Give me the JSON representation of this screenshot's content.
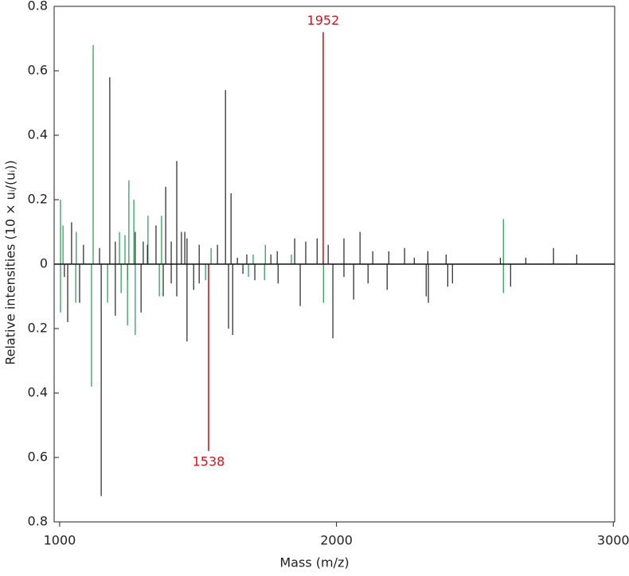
{
  "chart_data": {
    "type": "stick",
    "xlabel": "Mass (m/z)",
    "ylabel": "Relative intensities (10 × uᵢ/(uᵢ))",
    "xlim": [
      980,
      3005
    ],
    "ylim": [
      -0.8,
      0.8
    ],
    "xticks": [
      1000,
      2000,
      3000
    ],
    "yticks": [
      0.8,
      0.6,
      0.4,
      0.2,
      0,
      {
        "value": -0.2,
        "label": "0.2"
      },
      {
        "value": -0.4,
        "label": "0.4"
      },
      {
        "value": -0.6,
        "label": "0.6"
      },
      {
        "value": -0.8,
        "label": "0.8"
      }
    ],
    "series": [
      {
        "color": "#1e9a50",
        "x": [
          1003,
          1012,
          1060,
          1121,
          1216,
          1236,
          1250,
          1268,
          1319,
          1368,
          1547,
          1699,
          1743,
          1837,
          2603
        ],
        "values": [
          0.2,
          0.12,
          0.1,
          0.68,
          0.1,
          0.09,
          0.26,
          0.2,
          0.15,
          0.15,
          0.05,
          0.03,
          0.06,
          0.03,
          0.14
        ]
      },
      {
        "color": "#222222",
        "x": [
          1043,
          1086,
          1144,
          1181,
          1201,
          1273,
          1302,
          1317,
          1348,
          1383,
          1403,
          1423,
          1440,
          1452,
          1460,
          1504,
          1570,
          1599,
          1619,
          1642,
          1676,
          1763,
          1786,
          1849,
          1889,
          1930,
          1970,
          2027,
          2085,
          2131,
          2189,
          2246,
          2281,
          2330,
          2396,
          2592,
          2684,
          2784,
          2868
        ],
        "values": [
          0.13,
          0.06,
          0.05,
          0.58,
          0.07,
          0.1,
          0.07,
          0.06,
          0.12,
          0.24,
          0.07,
          0.32,
          0.1,
          0.1,
          0.08,
          0.06,
          0.06,
          0.54,
          0.22,
          0.02,
          0.03,
          0.03,
          0.04,
          0.08,
          0.07,
          0.08,
          0.06,
          0.08,
          0.1,
          0.04,
          0.04,
          0.05,
          0.02,
          0.04,
          0.03,
          0.02,
          0.02,
          0.05,
          0.03
        ]
      },
      {
        "color": "#222222",
        "x": [
          1017,
          1029,
          1072,
          1150,
          1201,
          1245,
          1294,
          1374,
          1403,
          1423,
          1460,
          1484,
          1504,
          1610,
          1625,
          1662,
          1705,
          1789,
          1869,
          1987,
          2027,
          2062,
          2114,
          2183,
          2324,
          2332,
          2402,
          2419,
          2629
        ],
        "values": [
          -0.04,
          -0.18,
          -0.12,
          -0.72,
          -0.16,
          -0.05,
          -0.15,
          -0.1,
          -0.06,
          -0.1,
          -0.24,
          -0.08,
          -0.06,
          -0.2,
          -0.22,
          -0.03,
          -0.05,
          -0.06,
          -0.13,
          -0.23,
          -0.04,
          -0.11,
          -0.06,
          -0.08,
          -0.1,
          -0.12,
          -0.07,
          -0.06,
          -0.07
        ]
      },
      {
        "color": "#1e9a50",
        "x": [
          1003,
          1058,
          1115,
          1173,
          1222,
          1245,
          1273,
          1360,
          1527,
          1682,
          1740,
          1953,
          2603
        ],
        "values": [
          -0.15,
          -0.12,
          -0.38,
          -0.12,
          -0.09,
          -0.19,
          -0.22,
          -0.1,
          -0.05,
          -0.04,
          -0.05,
          -0.12,
          -0.09
        ]
      },
      {
        "color": "#d7141e",
        "labeled": true,
        "x": [
          1952,
          1538
        ],
        "values": [
          0.72,
          -0.58
        ]
      }
    ]
  }
}
